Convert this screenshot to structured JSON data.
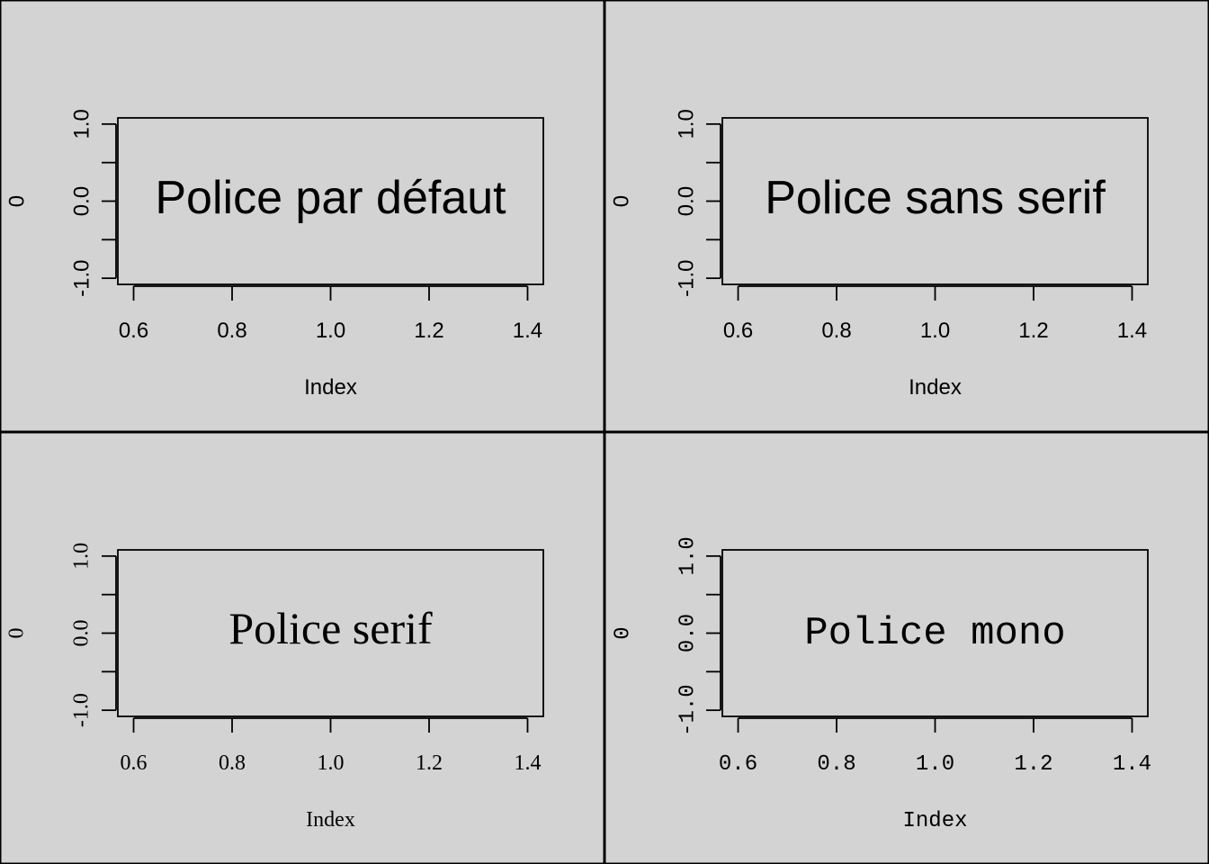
{
  "figure": {
    "background": "#d3d3d3",
    "layout": "2x2 grid"
  },
  "chart_data": [
    {
      "type": "scatter",
      "family": "sans-serif",
      "title": "",
      "annotation": "Police par défaut",
      "xlabel": "Index",
      "ylabel": "0",
      "xlim": [
        0.6,
        1.4
      ],
      "ylim": [
        -1.0,
        1.0
      ],
      "xticks": [
        0.6,
        0.8,
        1.0,
        1.2,
        1.4
      ],
      "xtick_labels": [
        "0.6",
        "0.8",
        "1.0",
        "1.2",
        "1.4"
      ],
      "yticks": [
        -1.0,
        -0.5,
        0.0,
        0.5,
        1.0
      ],
      "ytick_labels": [
        "-1.0",
        "",
        "0.0",
        "",
        "1.0"
      ],
      "x": [
        1
      ],
      "y": [
        0
      ],
      "points_visible": false
    },
    {
      "type": "scatter",
      "family": "sans-serif",
      "title": "",
      "annotation": "Police sans serif",
      "xlabel": "Index",
      "ylabel": "0",
      "xlim": [
        0.6,
        1.4
      ],
      "ylim": [
        -1.0,
        1.0
      ],
      "xticks": [
        0.6,
        0.8,
        1.0,
        1.2,
        1.4
      ],
      "xtick_labels": [
        "0.6",
        "0.8",
        "1.0",
        "1.2",
        "1.4"
      ],
      "yticks": [
        -1.0,
        -0.5,
        0.0,
        0.5,
        1.0
      ],
      "ytick_labels": [
        "-1.0",
        "",
        "0.0",
        "",
        "1.0"
      ],
      "x": [
        1
      ],
      "y": [
        0
      ],
      "points_visible": false
    },
    {
      "type": "scatter",
      "family": "serif",
      "title": "",
      "annotation": "Police serif",
      "xlabel": "Index",
      "ylabel": "0",
      "xlim": [
        0.6,
        1.4
      ],
      "ylim": [
        -1.0,
        1.0
      ],
      "xticks": [
        0.6,
        0.8,
        1.0,
        1.2,
        1.4
      ],
      "xtick_labels": [
        "0.6",
        "0.8",
        "1.0",
        "1.2",
        "1.4"
      ],
      "yticks": [
        -1.0,
        -0.5,
        0.0,
        0.5,
        1.0
      ],
      "ytick_labels": [
        "-1.0",
        "",
        "0.0",
        "",
        "1.0"
      ],
      "x": [
        1
      ],
      "y": [
        0
      ],
      "points_visible": false
    },
    {
      "type": "scatter",
      "family": "mono",
      "title": "",
      "annotation": "Police mono",
      "xlabel": "Index",
      "ylabel": "0",
      "xlim": [
        0.6,
        1.4
      ],
      "ylim": [
        -1.0,
        1.0
      ],
      "xticks": [
        0.6,
        0.8,
        1.0,
        1.2,
        1.4
      ],
      "xtick_labels": [
        "0.6",
        "0.8",
        "1.0",
        "1.2",
        "1.4"
      ],
      "yticks": [
        -1.0,
        -0.5,
        0.0,
        0.5,
        1.0
      ],
      "ytick_labels": [
        "-1.0",
        "",
        "0.0",
        "",
        "1.0"
      ],
      "x": [
        1
      ],
      "y": [
        0
      ],
      "points_visible": false
    }
  ]
}
